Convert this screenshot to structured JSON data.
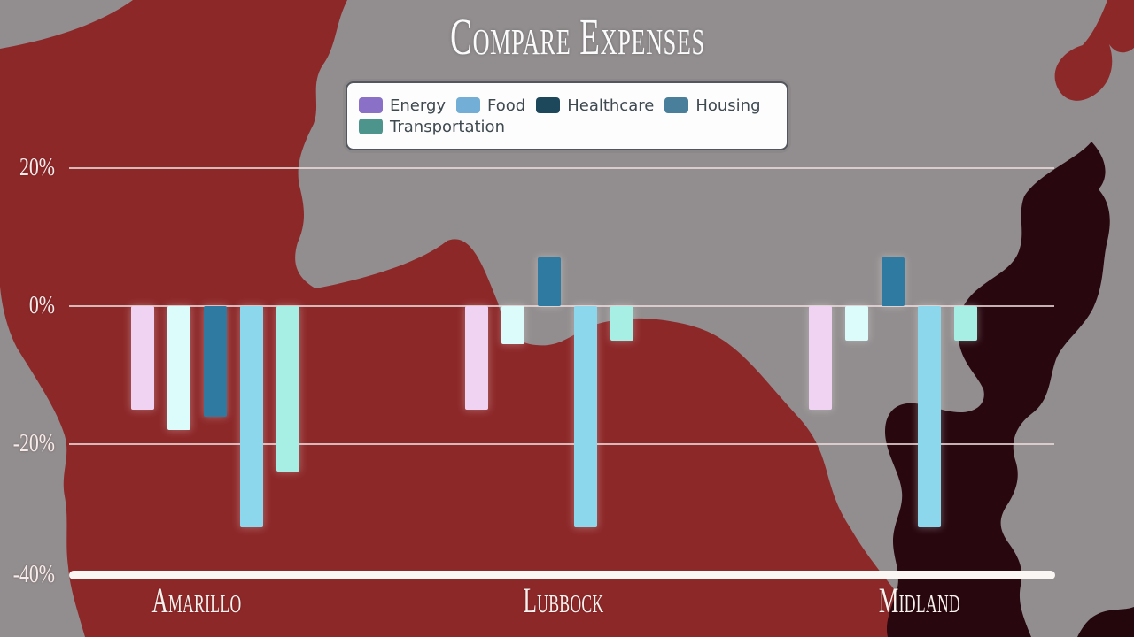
{
  "title": "Compare Expenses",
  "legend": {
    "items": [
      {
        "label": "Energy",
        "color": "#8a71c7"
      },
      {
        "label": "Food",
        "color": "#72aed6"
      },
      {
        "label": "Healthcare",
        "color": "#1d485c"
      },
      {
        "label": "Housing",
        "color": "#4a7f9b"
      },
      {
        "label": "Transportation",
        "color": "#4d948c"
      }
    ]
  },
  "y_axis": {
    "tick_labels": [
      "20%",
      "0%",
      "-20%",
      "-40%"
    ],
    "tick_values": [
      20,
      0,
      -20,
      -40
    ]
  },
  "chart_data": {
    "type": "bar",
    "title": "Compare Expenses",
    "categories": [
      "Amarillo",
      "Lubbock",
      "Midland"
    ],
    "series": [
      {
        "name": "Energy",
        "values": [
          -15,
          -15,
          -15
        ],
        "legend_color": "#8a71c7",
        "bar_color": "#f0d3f2"
      },
      {
        "name": "Food",
        "values": [
          -18,
          -5.5,
          -5
        ],
        "legend_color": "#72aed6",
        "bar_color": "#dcfbfb"
      },
      {
        "name": "Healthcare",
        "values": [
          -16,
          7,
          7
        ],
        "legend_color": "#1d485c",
        "bar_color": "#2e7aa1"
      },
      {
        "name": "Housing",
        "values": [
          -32,
          -32,
          -32
        ],
        "legend_color": "#4a7f9b",
        "bar_color": "#8dd7ec"
      },
      {
        "name": "Transportation",
        "values": [
          -24,
          -5,
          -5
        ],
        "legend_color": "#4d948c",
        "bar_color": "#a7eee4"
      }
    ],
    "xlabel": "",
    "ylabel": "",
    "ylim": [
      -40,
      20
    ],
    "yticks": [
      20,
      0,
      -20,
      -40
    ],
    "grid": true,
    "legend_position": "top-center"
  },
  "colors": {
    "background_gray": "#928e8f",
    "map_red": "#8d2829",
    "map_dark": "#28070f",
    "axis_line": "#faf6f3",
    "gridline": "#ecdcdc",
    "tick_text": "#f6ecec",
    "category_text": "#f8f3ef",
    "title_text": "#fbfbfb",
    "legend_background": "#fdfdfd",
    "legend_border": "#53565c",
    "legend_text": "#3f4950"
  }
}
